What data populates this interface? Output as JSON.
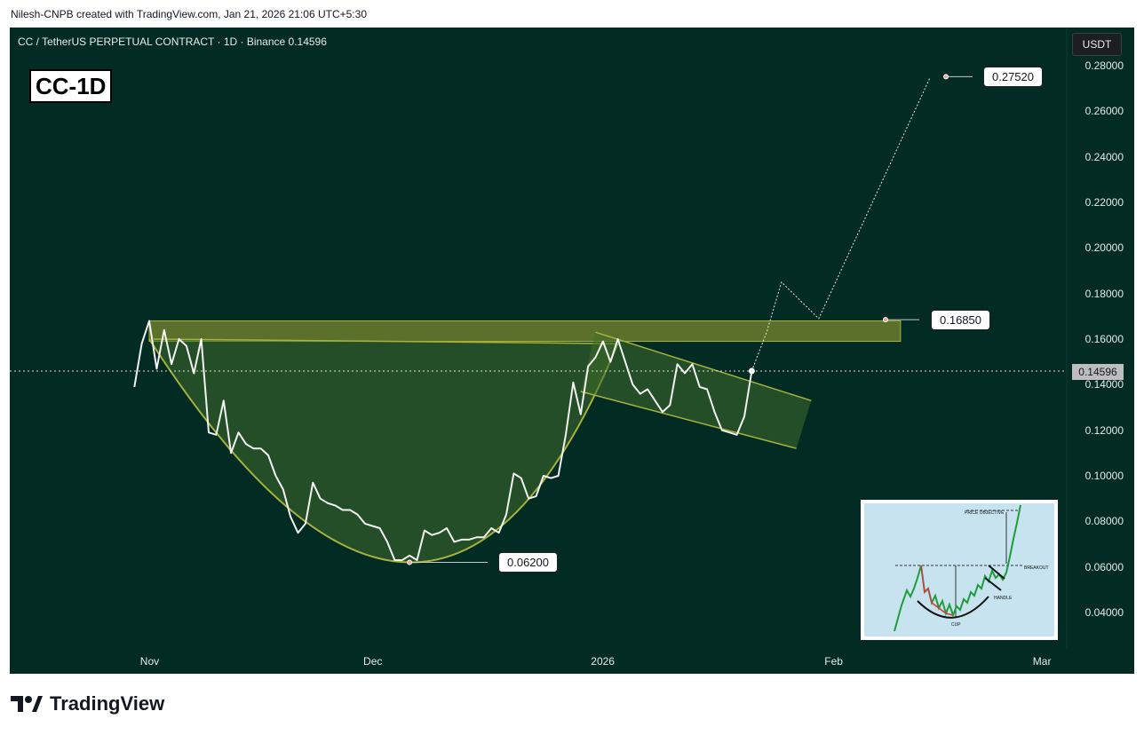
{
  "caption": "Nilesh-CNPB created with TradingView.com, Jan 21, 2026 21:06 UTC+5:30",
  "symbol_line": "CC / TetherUS PERPETUAL CONTRACT · 1D · Binance  0.14596",
  "label": "CC-1D",
  "currency": "USDT",
  "brand": "TradingView",
  "brand_icon": "tradingview-logo-icon",
  "colors": {
    "background": "#022b24",
    "price_line": "#f2f2f2",
    "pattern_fill": "#3f6b2a",
    "pattern_stroke": "#a7b23d",
    "resistance_zone": "#7a8a2e"
  },
  "annotations": {
    "low": "0.06200",
    "resistance": "0.16850",
    "target": "0.27520"
  },
  "inset": {
    "title": "PRICE OBJECTIVE",
    "cup": "CUP",
    "handle": "HANDLE",
    "breakout": "BREAKOUT"
  },
  "chart_data": {
    "type": "line",
    "title": "CC / TetherUS PERPETUAL CONTRACT · 1D · Binance",
    "current_price": "0.14596",
    "y_ticks": [
      "0.28000",
      "0.26000",
      "0.24000",
      "0.22000",
      "0.20000",
      "0.18000",
      "0.16000",
      "0.14000",
      "0.12000",
      "0.10000",
      "0.08000",
      "0.06000",
      "0.04000"
    ],
    "x_ticks": [
      "Nov",
      "Dec",
      "2026",
      "Feb",
      "Mar"
    ],
    "ylim": [
      0.03,
      0.285
    ],
    "xlim": [
      "2025-10-20",
      "2026-03-05"
    ],
    "series": [
      {
        "values": [
          [
            "2025-10-30",
            0.139
          ],
          [
            "2025-10-31",
            0.158
          ],
          [
            "2025-11-01",
            0.168
          ],
          [
            "2025-11-02",
            0.147
          ],
          [
            "2025-11-03",
            0.164
          ],
          [
            "2025-11-04",
            0.149
          ],
          [
            "2025-11-05",
            0.16
          ],
          [
            "2025-11-06",
            0.157
          ],
          [
            "2025-11-07",
            0.145
          ],
          [
            "2025-11-08",
            0.16
          ],
          [
            "2025-11-09",
            0.119
          ],
          [
            "2025-11-10",
            0.118
          ],
          [
            "2025-11-11",
            0.133
          ],
          [
            "2025-11-12",
            0.11
          ],
          [
            "2025-11-13",
            0.119
          ],
          [
            "2025-11-14",
            0.114
          ],
          [
            "2025-11-15",
            0.112
          ],
          [
            "2025-11-16",
            0.112
          ],
          [
            "2025-11-17",
            0.109
          ],
          [
            "2025-11-18",
            0.1
          ],
          [
            "2025-11-19",
            0.094
          ],
          [
            "2025-11-20",
            0.082
          ],
          [
            "2025-11-21",
            0.075
          ],
          [
            "2025-11-22",
            0.079
          ],
          [
            "2025-11-23",
            0.097
          ],
          [
            "2025-11-24",
            0.09
          ],
          [
            "2025-11-25",
            0.088
          ],
          [
            "2025-11-26",
            0.087
          ],
          [
            "2025-11-27",
            0.085
          ],
          [
            "2025-11-28",
            0.085
          ],
          [
            "2025-11-29",
            0.083
          ],
          [
            "2025-11-30",
            0.079
          ],
          [
            "2025-12-01",
            0.078
          ],
          [
            "2025-12-02",
            0.077
          ],
          [
            "2025-12-03",
            0.071
          ],
          [
            "2025-12-04",
            0.063
          ],
          [
            "2025-12-05",
            0.063
          ],
          [
            "2025-12-06",
            0.065
          ],
          [
            "2025-12-07",
            0.063
          ],
          [
            "2025-12-08",
            0.076
          ],
          [
            "2025-12-09",
            0.074
          ],
          [
            "2025-12-10",
            0.075
          ],
          [
            "2025-12-11",
            0.077
          ],
          [
            "2025-12-12",
            0.071
          ],
          [
            "2025-12-13",
            0.072
          ],
          [
            "2025-12-14",
            0.072
          ],
          [
            "2025-12-15",
            0.073
          ],
          [
            "2025-12-16",
            0.073
          ],
          [
            "2025-12-17",
            0.077
          ],
          [
            "2025-12-18",
            0.075
          ],
          [
            "2025-12-19",
            0.083
          ],
          [
            "2025-12-20",
            0.101
          ],
          [
            "2025-12-21",
            0.099
          ],
          [
            "2025-12-22",
            0.09
          ],
          [
            "2025-12-23",
            0.091
          ],
          [
            "2025-12-24",
            0.1
          ],
          [
            "2025-12-25",
            0.099
          ],
          [
            "2025-12-26",
            0.1
          ],
          [
            "2025-12-27",
            0.118
          ],
          [
            "2025-12-28",
            0.141
          ],
          [
            "2025-12-29",
            0.127
          ],
          [
            "2025-12-30",
            0.148
          ],
          [
            "2025-12-31",
            0.152
          ],
          [
            "2026-01-01",
            0.159
          ],
          [
            "2026-01-02",
            0.15
          ],
          [
            "2026-01-03",
            0.16
          ],
          [
            "2026-01-04",
            0.15
          ],
          [
            "2026-01-05",
            0.14
          ],
          [
            "2026-01-06",
            0.136
          ],
          [
            "2026-01-07",
            0.138
          ],
          [
            "2026-01-08",
            0.133
          ],
          [
            "2026-01-09",
            0.128
          ],
          [
            "2026-01-10",
            0.131
          ],
          [
            "2026-01-11",
            0.149
          ],
          [
            "2026-01-12",
            0.145
          ],
          [
            "2026-01-13",
            0.149
          ],
          [
            "2026-01-14",
            0.139
          ],
          [
            "2026-01-15",
            0.138
          ],
          [
            "2026-01-16",
            0.128
          ],
          [
            "2026-01-17",
            0.12
          ],
          [
            "2026-01-18",
            0.119
          ],
          [
            "2026-01-19",
            0.118
          ],
          [
            "2026-01-20",
            0.126
          ],
          [
            "2026-01-21",
            0.146
          ]
        ]
      }
    ],
    "projection": [
      [
        "2026-01-21",
        0.146
      ],
      [
        "2026-01-23",
        0.163
      ],
      [
        "2026-01-25",
        0.185
      ],
      [
        "2026-01-30",
        0.169
      ],
      [
        "2026-02-14",
        0.275
      ]
    ],
    "resistance_zone": {
      "x_start": "2025-11-01",
      "x_end": "2026-02-10",
      "y_low": 0.159,
      "y_high": 0.168
    },
    "cup_low": {
      "x": "2025-12-06",
      "y": 0.062
    },
    "handle_channel": {
      "upper": [
        [
          "2025-12-31",
          0.163
        ],
        [
          "2026-01-29",
          0.133
        ]
      ],
      "lower": [
        [
          "2025-12-29",
          0.137
        ],
        [
          "2026-01-27",
          0.112
        ]
      ]
    },
    "grid": false
  }
}
